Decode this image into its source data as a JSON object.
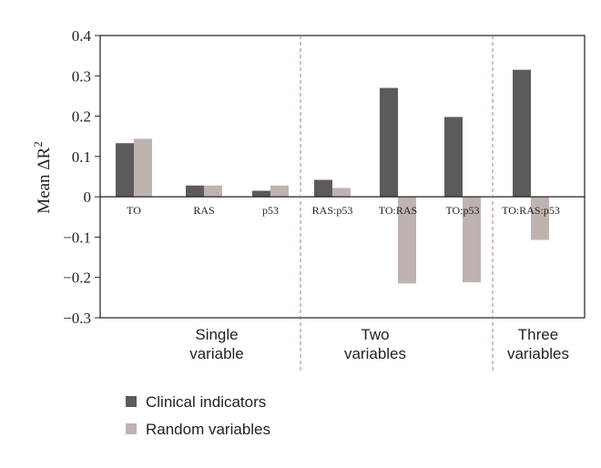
{
  "chart_data": {
    "type": "bar",
    "ylabel": "Mean ΔR",
    "ylabel_superscript": "2",
    "ylim": [
      -0.3,
      0.4
    ],
    "yticks": [
      {
        "value": 0.4,
        "label": "0.4"
      },
      {
        "value": 0.3,
        "label": "0.3"
      },
      {
        "value": 0.2,
        "label": "0.2"
      },
      {
        "value": 0.1,
        "label": "0.1"
      },
      {
        "value": 0,
        "label": "0"
      },
      {
        "value": -0.1,
        "label": "−0.1"
      },
      {
        "value": -0.2,
        "label": "−0.2"
      },
      {
        "value": -0.3,
        "label": "−0.3"
      }
    ],
    "categories": [
      "TO",
      "RAS",
      "p53",
      "RAS:p53",
      "TO:RAS",
      "TO:p53",
      "TO:RAS:p53"
    ],
    "series": [
      {
        "name": "Clinical indicators",
        "color": "#5e5a5a",
        "values": [
          0.133,
          0.028,
          0.015,
          0.042,
          0.27,
          0.198,
          0.315
        ]
      },
      {
        "name": "Random variables",
        "color": "#bdb4b1",
        "values": [
          0.144,
          0.028,
          0.028,
          0.022,
          -0.215,
          -0.212,
          -0.107
        ]
      }
    ],
    "groups": [
      {
        "line1": "Single",
        "line2": "variable",
        "categories": [
          "TO",
          "RAS",
          "p53"
        ]
      },
      {
        "line1": "Two",
        "line2": "variables",
        "categories": [
          "RAS:p53",
          "TO:RAS",
          "TO:p53"
        ]
      },
      {
        "line1": "Three",
        "line2": "variables",
        "categories": [
          "TO:RAS:p53"
        ]
      }
    ],
    "grid": false,
    "legend_position": "bottom-left"
  }
}
